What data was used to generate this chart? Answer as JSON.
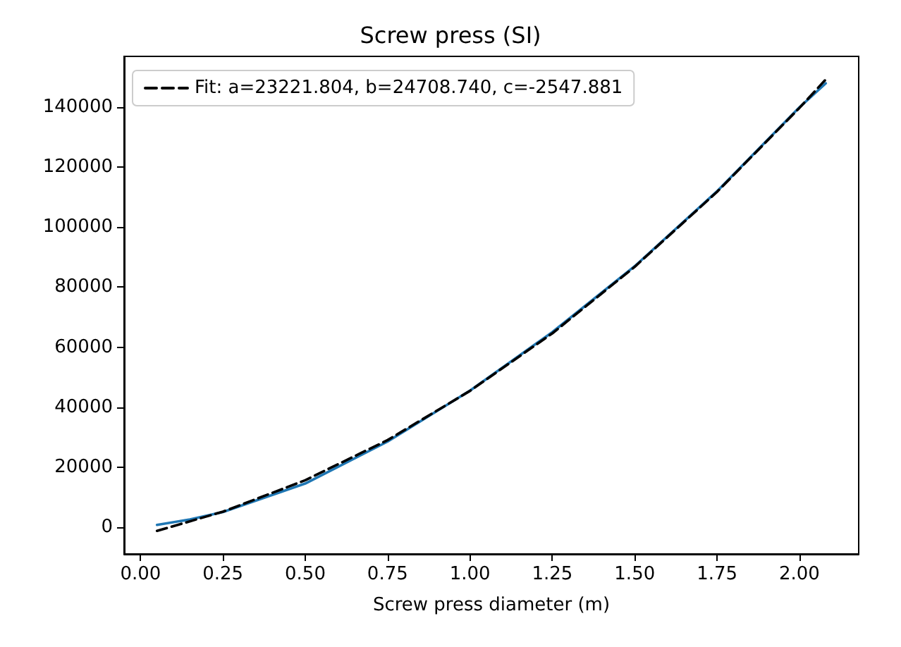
{
  "chart_data": {
    "type": "line",
    "title": "Screw press (SI)",
    "xlabel": "Screw press diameter (m)",
    "xlim": [
      -0.05,
      2.18
    ],
    "xticks": [
      {
        "value": 0,
        "label": "0.00"
      },
      0.25,
      {
        "value": 0.5,
        "label": "0.50"
      },
      0.75,
      {
        "value": 1,
        "label": "1.00"
      },
      1.25,
      {
        "value": 1.5,
        "label": "1.50"
      },
      1.75,
      {
        "value": 2,
        "label": "2.00"
      }
    ],
    "ylim": [
      -9000,
      157000
    ],
    "yticks": [
      0,
      20000,
      40000,
      60000,
      80000,
      100000,
      120000,
      140000
    ],
    "grid": false,
    "legend": "top left",
    "series": [
      {
        "color": "#1f77b4",
        "line_style": "solid",
        "x": [
          0.05,
          0.15,
          0.25,
          0.5,
          0.75,
          1,
          1.25,
          1.5,
          1.75,
          2,
          2.08
        ],
        "values": [
          700,
          2500,
          5000,
          14500,
          28500,
          45500,
          65000,
          87000,
          112000,
          140000,
          148000
        ]
      },
      {
        "name": "Fit: a=23221.804, b=24708.740, c=-2547.881",
        "color": "#000000",
        "line_style": "dashed",
        "x": [
          0.05,
          0.25,
          0.5,
          0.75,
          1,
          1.25,
          1.5,
          1.75,
          2,
          2.08
        ],
        "values": [
          -1300,
          5100,
          15600,
          29000,
          45400,
          64600,
          86800,
          111800,
          139800,
          149300
        ]
      }
    ]
  }
}
